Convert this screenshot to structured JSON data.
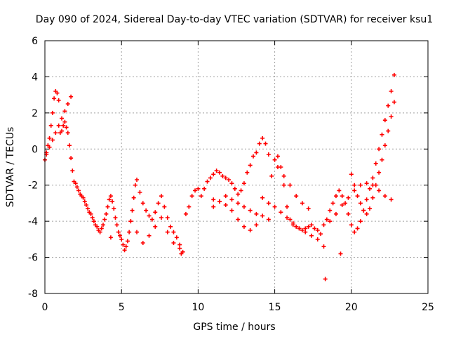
{
  "chart_data": {
    "type": "scatter",
    "title": "Day 090 of 2024, Sidereal Day-to-day VTEC variation (SDTVAR) for receiver ksu1",
    "xlabel": "GPS time / hours",
    "ylabel": "SDTVAR / TECUs",
    "xlim": [
      0,
      25
    ],
    "ylim": [
      -8,
      6
    ],
    "xticks": [
      0,
      5,
      10,
      15,
      20,
      25
    ],
    "yticks": [
      -8,
      -6,
      -4,
      -2,
      0,
      2,
      4,
      6
    ],
    "grid": true,
    "marker": "+",
    "colors": {
      "series": "#ff0000",
      "axis": "#000000",
      "grid": "#a0a0a0"
    },
    "series": [
      {
        "name": "ksu1",
        "x": [
          0.0,
          0.1,
          0.2,
          0.3,
          0.4,
          0.5,
          0.6,
          0.7,
          0.8,
          0.9,
          1.0,
          1.1,
          1.2,
          1.3,
          1.4,
          1.5,
          1.6,
          1.7,
          1.8,
          1.9,
          2.0,
          2.1,
          2.2,
          2.3,
          2.4,
          2.5,
          2.6,
          2.7,
          2.8,
          2.9,
          3.0,
          3.1,
          3.2,
          3.3,
          3.4,
          3.5,
          3.6,
          3.7,
          3.8,
          3.9,
          4.0,
          4.1,
          4.2,
          4.3,
          4.4,
          4.5,
          4.6,
          4.7,
          4.8,
          4.9,
          5.0,
          5.1,
          5.2,
          5.3,
          5.4,
          5.5,
          5.6,
          5.7,
          5.8,
          5.9,
          6.0,
          6.2,
          6.4,
          6.6,
          6.8,
          7.0,
          7.2,
          7.4,
          7.6,
          7.8,
          8.0,
          8.2,
          8.4,
          8.6,
          8.8,
          9.0,
          9.2,
          9.4,
          9.6,
          9.8,
          10.0,
          10.2,
          10.4,
          10.6,
          10.8,
          11.0,
          11.2,
          11.4,
          11.6,
          11.8,
          12.0,
          12.2,
          12.4,
          12.6,
          12.8,
          13.0,
          13.2,
          13.4,
          13.6,
          13.8,
          14.0,
          14.2,
          14.4,
          14.6,
          14.8,
          15.0,
          15.2,
          15.4,
          15.6,
          15.8,
          16.0,
          16.2,
          16.4,
          16.6,
          16.8,
          17.0,
          17.2,
          17.4,
          17.6,
          17.8,
          18.0,
          18.2,
          18.4,
          18.6,
          18.8,
          19.0,
          19.2,
          19.4,
          19.6,
          19.8,
          20.0,
          20.2,
          20.4,
          20.6,
          20.8,
          21.0,
          21.2,
          21.4,
          21.6,
          21.8,
          22.0,
          22.2,
          22.4,
          22.6,
          22.8,
          0.1,
          0.3,
          0.5,
          0.7,
          0.9,
          1.1,
          1.3,
          1.5,
          1.7,
          5.6,
          6.0,
          6.4,
          6.8,
          7.2,
          7.6,
          8.0,
          8.4,
          8.8,
          11.0,
          11.4,
          11.8,
          12.2,
          12.6,
          13.0,
          13.4,
          13.8,
          14.2,
          14.6,
          15.2,
          15.6,
          16.0,
          16.4,
          16.8,
          17.2,
          18.6,
          19.0,
          19.4,
          19.8,
          20.2,
          20.6,
          21.0,
          21.4,
          21.8,
          22.2,
          22.6,
          11.0,
          11.4,
          11.8,
          12.2,
          12.6,
          13.0,
          13.4,
          13.8,
          14.2,
          14.6,
          15.0,
          15.4,
          15.8,
          16.2,
          16.6,
          17.0,
          17.4,
          17.8,
          18.2,
          20.0,
          20.2,
          20.4,
          20.6,
          20.8,
          21.0,
          21.2,
          21.4,
          21.6,
          21.8,
          22.0,
          22.2,
          22.4,
          22.6,
          22.8,
          18.3,
          8.9,
          4.3,
          19.3
        ],
        "y": [
          -0.6,
          -0.2,
          0.2,
          0.6,
          1.3,
          2.0,
          2.8,
          3.2,
          3.1,
          2.7,
          0.9,
          1.0,
          1.3,
          1.5,
          1.2,
          0.9,
          0.2,
          -0.5,
          -1.2,
          -1.8,
          -1.9,
          -2.1,
          -2.3,
          -2.5,
          -2.6,
          -2.7,
          -2.9,
          -3.1,
          -3.3,
          -3.5,
          -3.6,
          -3.8,
          -4.0,
          -4.2,
          -4.3,
          -4.5,
          -4.6,
          -4.4,
          -4.2,
          -3.9,
          -3.6,
          -3.2,
          -2.8,
          -2.6,
          -2.9,
          -3.3,
          -3.8,
          -4.2,
          -4.6,
          -4.8,
          -5.0,
          -5.3,
          -5.6,
          -5.4,
          -5.1,
          -4.6,
          -4.0,
          -3.4,
          -2.7,
          -2.0,
          -1.7,
          -2.4,
          -3.0,
          -3.4,
          -3.7,
          -3.9,
          -3.5,
          -3.0,
          -2.6,
          -3.2,
          -3.8,
          -4.3,
          -4.6,
          -4.9,
          -5.3,
          -5.7,
          -3.6,
          -3.2,
          -2.6,
          -2.3,
          -2.2,
          -2.6,
          -2.2,
          -1.8,
          -1.6,
          -1.4,
          -1.2,
          -1.3,
          -1.5,
          -1.6,
          -1.7,
          -1.9,
          -2.2,
          -2.5,
          -2.3,
          -1.9,
          -1.3,
          -0.9,
          -0.4,
          -0.2,
          0.3,
          0.6,
          0.3,
          -0.3,
          -1.5,
          -0.6,
          -0.4,
          -1.0,
          -2.0,
          -3.2,
          -3.9,
          -4.2,
          -4.3,
          -4.4,
          -4.5,
          -4.4,
          -4.3,
          -4.2,
          -4.4,
          -4.5,
          -4.7,
          -4.2,
          -3.9,
          -3.4,
          -3.0,
          -2.6,
          -2.3,
          -2.6,
          -3.0,
          -3.6,
          -4.2,
          -4.6,
          -4.4,
          -4.0,
          -3.4,
          -2.8,
          -2.2,
          -1.6,
          -0.8,
          0.0,
          0.8,
          1.6,
          2.4,
          3.2,
          4.1,
          -0.3,
          0.1,
          0.5,
          0.9,
          1.3,
          1.7,
          2.1,
          2.5,
          2.9,
          -4.0,
          -4.6,
          -5.2,
          -4.8,
          -4.3,
          -3.8,
          -4.6,
          -5.2,
          -5.5,
          -3.2,
          -2.9,
          -2.6,
          -2.8,
          -3.0,
          -3.2,
          -3.4,
          -3.6,
          -3.7,
          -3.9,
          -1.0,
          -1.5,
          -2.0,
          -2.6,
          -3.0,
          -3.3,
          -4.0,
          -3.6,
          -3.1,
          -2.7,
          -2.3,
          -2.0,
          -1.9,
          -2.0,
          -2.3,
          -2.6,
          -2.8,
          -2.8,
          -2.9,
          -3.1,
          -3.4,
          -3.9,
          -4.3,
          -4.5,
          -4.2,
          -2.7,
          -3.0,
          -3.2,
          -3.5,
          -3.8,
          -4.1,
          -4.4,
          -4.6,
          -4.8,
          -5.0,
          -5.4,
          -1.4,
          -2.0,
          -2.6,
          -3.0,
          -3.4,
          -3.6,
          -3.3,
          -2.7,
          -2.0,
          -1.3,
          -0.6,
          0.2,
          1.0,
          1.8,
          2.6,
          -7.2,
          -5.8,
          -4.9,
          -5.8
        ]
      }
    ]
  }
}
